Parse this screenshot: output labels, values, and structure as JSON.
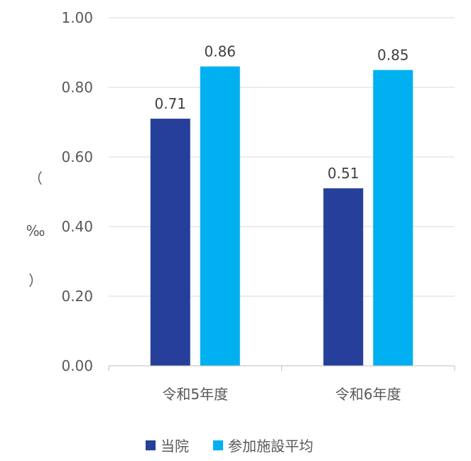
{
  "chart_data": {
    "type": "bar",
    "categories": [
      "令和5年度",
      "令和6年度"
    ],
    "series": [
      {
        "name": "当院",
        "color": "#253f9a",
        "values": [
          0.71,
          0.51
        ],
        "labels": [
          "0.71",
          "0.51"
        ]
      },
      {
        "name": "参加施設平均",
        "color": "#00b0f0",
        "values": [
          0.86,
          0.85
        ],
        "labels": [
          "0.86",
          "0.85"
        ]
      }
    ],
    "ylabel_parts": [
      "（",
      "‰",
      "）"
    ],
    "ylim": [
      0,
      1.0
    ],
    "yticks": [
      "0.00",
      "0.20",
      "0.40",
      "0.60",
      "0.80",
      "1.00"
    ],
    "grid": true,
    "legend_position": "bottom"
  }
}
